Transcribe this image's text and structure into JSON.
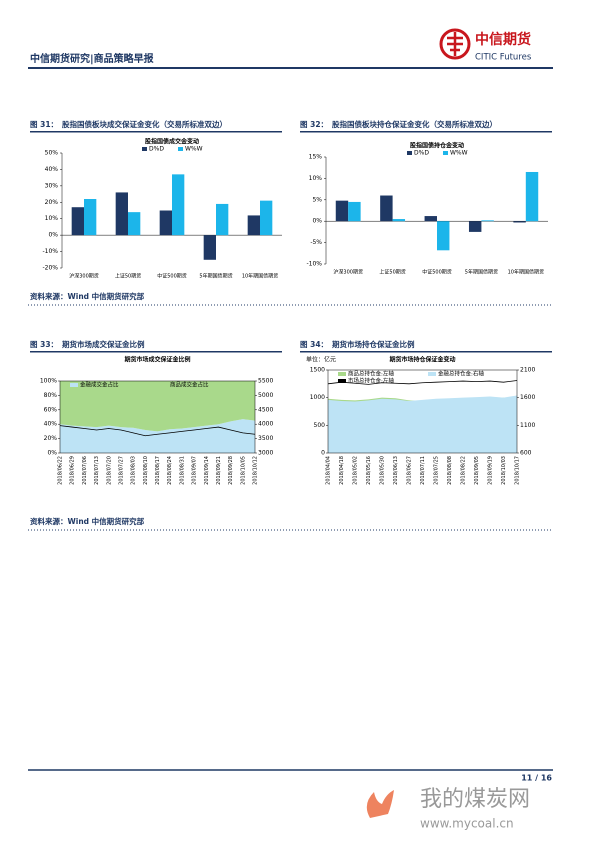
{
  "header": {
    "title": "中信期货研究|商品策略早报",
    "logo_cn": "中信期货",
    "logo_en": "CITIC Futures"
  },
  "figures": [
    {
      "label": "图 31：",
      "caption": "股指国债板块成交保证金变化（交易所标准双边）",
      "chart_data": {
        "type": "bar",
        "title": "股指国债成交金变动",
        "categories": [
          "沪深300期货",
          "上证50期货",
          "中证500期货",
          "5年期国债期货",
          "10年期国债期货"
        ],
        "series": [
          {
            "name": "D%D",
            "color": "#1f3864",
            "values": [
              17,
              26,
              15,
              -15,
              12
            ]
          },
          {
            "name": "W%W",
            "color": "#1cb5ea",
            "values": [
              22,
              14,
              37,
              19,
              21
            ]
          }
        ],
        "ylim": [
          -20,
          50
        ],
        "yticks": [
          {
            "value": -20,
            "label": "-20%"
          },
          {
            "value": -10,
            "label": "-10%"
          },
          {
            "value": 0,
            "label": "0%"
          },
          {
            "value": 10,
            "label": "10%"
          },
          {
            "value": 20,
            "label": "20%"
          },
          {
            "value": 30,
            "label": "30%"
          },
          {
            "value": 40,
            "label": "40%"
          },
          {
            "value": 50,
            "label": "50%"
          }
        ]
      }
    },
    {
      "label": "图 32：",
      "caption": "股指国债板块持仓保证金变化（交易所标准双边）",
      "chart_data": {
        "type": "bar",
        "title": "股指国债持仓金变动",
        "categories": [
          "沪深300期货",
          "上证50期货",
          "中证500期货",
          "5年期国债期货",
          "10年期国债期货"
        ],
        "series": [
          {
            "name": "D%D",
            "color": "#1f3864",
            "values": [
              4.8,
              6,
              1.2,
              -2.5,
              -0.3
            ]
          },
          {
            "name": "W%W",
            "color": "#1cb5ea",
            "values": [
              4.5,
              0.5,
              -6.8,
              0.2,
              11.5
            ]
          }
        ],
        "ylim": [
          -10,
          15
        ],
        "yticks": [
          {
            "value": -10,
            "label": "-10%"
          },
          {
            "value": -5,
            "label": "-5%"
          },
          {
            "value": 0,
            "label": "0%"
          },
          {
            "value": 5,
            "label": "5%"
          },
          {
            "value": 10,
            "label": "10%"
          },
          {
            "value": 15,
            "label": "15%"
          }
        ]
      }
    },
    {
      "label": "图 33：",
      "caption": "期货市场成交保证金比例",
      "chart_data": {
        "type": "area",
        "title": "期货市场成交保证金比例",
        "stacked": true,
        "x": [
          "2018/06/22",
          "2018/06/29",
          "2018/07/06",
          "2018/07/13",
          "2018/07/20",
          "2018/07/27",
          "2018/08/03",
          "2018/08/10",
          "2018/08/17",
          "2018/08/24",
          "2018/08/31",
          "2018/09/07",
          "2018/09/14",
          "2018/09/21",
          "2018/09/28",
          "2018/10/05",
          "2018/10/12"
        ],
        "series": [
          {
            "name": "金融成交金占比",
            "color": "#bde3f5",
            "style": "area",
            "values": [
              40,
              38,
              37,
              36,
              38,
              36,
              35,
              32,
              30,
              33,
              34,
              36,
              38,
              40,
              44,
              47,
              45
            ]
          },
          {
            "name": "商品成交金占比",
            "color": "#a9d98b",
            "style": "area",
            "values": [
              60,
              62,
              63,
              64,
              62,
              64,
              65,
              68,
              70,
              67,
              66,
              64,
              62,
              60,
              56,
              53,
              55
            ]
          },
          {
            "color": "#000000",
            "style": "line",
            "axis": "y2",
            "values": [
              3950,
              3900,
              3850,
              3800,
              3850,
              3800,
              3700,
              3600,
              3650,
              3700,
              3750,
              3800,
              3850,
              3900,
              3800,
              3700,
              3650
            ]
          }
        ],
        "ylim": [
          0,
          100
        ],
        "yticks": [
          {
            "value": 0,
            "label": "0%"
          },
          {
            "value": 20,
            "label": "20%"
          },
          {
            "value": 40,
            "label": "40%"
          },
          {
            "value": 60,
            "label": "60%"
          },
          {
            "value": 80,
            "label": "80%"
          },
          {
            "value": 100,
            "label": "100%"
          }
        ],
        "y2lim": [
          3000,
          5500
        ],
        "y2ticks": [
          3000,
          3500,
          4000,
          4500,
          5000,
          5500
        ]
      }
    },
    {
      "label": "图 34：",
      "caption": "期货市场持仓保证金比例",
      "chart_data": {
        "type": "area",
        "title": "期货市场持仓保证金变动",
        "unit": "单位：亿元",
        "stacked": false,
        "x": [
          "2018/04/04",
          "2018/04/18",
          "2018/05/02",
          "2018/05/16",
          "2018/05/30",
          "2018/06/13",
          "2018/06/27",
          "2018/07/11",
          "2018/07/25",
          "2018/08/08",
          "2018/08/22",
          "2018/09/05",
          "2018/09/19",
          "2018/10/03",
          "2018/10/17"
        ],
        "series": [
          {
            "name": "商品总持仓金:左轴",
            "color": "#a9d98b",
            "style": "area",
            "values": [
              980,
              960,
              950,
              970,
              1000,
              990,
              950,
              940,
              950,
              960,
              980,
              990,
              1000,
              1000,
              1010
            ]
          },
          {
            "name": "金融总持仓金:右轴",
            "color": "#bde3f5",
            "style": "area",
            "axis": "y2",
            "values": [
              1560,
              1540,
              1530,
              1550,
              1580,
              1570,
              1540,
              1560,
              1580,
              1590,
              1600,
              1610,
              1620,
              1600,
              1640
            ]
          },
          {
            "name": "市场总持仓金:左轴",
            "color": "#000000",
            "style": "line",
            "values": [
              1250,
              1280,
              1260,
              1240,
              1270,
              1260,
              1250,
              1270,
              1280,
              1290,
              1300,
              1290,
              1300,
              1280,
              1310
            ]
          }
        ],
        "ylim": [
          0,
          1500
        ],
        "yticks": [
          0,
          500,
          1000,
          1500
        ],
        "y2lim": [
          600,
          2100
        ],
        "y2ticks": [
          600,
          1100,
          1600,
          2100
        ]
      }
    }
  ],
  "sources": [
    "资料来源：Wind 中信期货研究部",
    "资料来源：Wind 中信期货研究部"
  ],
  "footer": {
    "page": "11 / 16"
  },
  "watermark": {
    "cn": "我的煤炭网",
    "url": "www.mycoal.cn"
  }
}
